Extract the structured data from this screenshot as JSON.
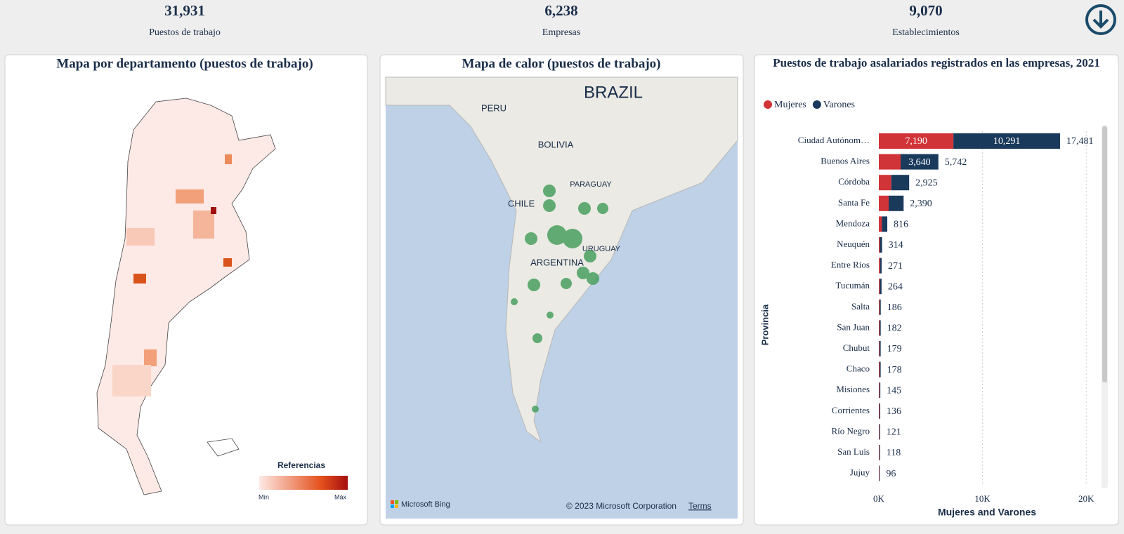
{
  "kpis": [
    {
      "value": "31,931",
      "label": "Puestos de trabajo"
    },
    {
      "value": "6,238",
      "label": "Empresas"
    },
    {
      "value": "9,070",
      "label": "Establecimientos"
    }
  ],
  "map_panel": {
    "title": "Mapa por departamento (puestos de trabajo)",
    "legend_title": "Referencias",
    "legend_min": "Mín",
    "legend_max": "Máx"
  },
  "heat_panel": {
    "title": "Mapa de calor (puestos de trabajo)",
    "labels": [
      "BRAZIL",
      "PERU",
      "BOLIVIA",
      "CHILE",
      "PARAGUAY",
      "URUGUAY",
      "ARGENTINA"
    ],
    "brand": "Microsoft Bing",
    "copyright": "© 2023 Microsoft Corporation",
    "terms": "Terms"
  },
  "chart_data": {
    "type": "stacked_bar_horizontal",
    "title": "Puestos de trabajo asalariados registrados en las empresas, 2021",
    "x_label": "Mujeres and Varones",
    "y_label": "Provincia",
    "categories": [
      "Ciudad Autónom…",
      "Buenos Aires",
      "Córdoba",
      "Santa Fe",
      "Mendoza",
      "Neuquén",
      "Entre Ríos",
      "Tucumán",
      "Salta",
      "San Juan",
      "Chubut",
      "Chaco",
      "Misiones",
      "Corrientes",
      "Río Negro",
      "San Luis",
      "Jujuy"
    ],
    "series": [
      {
        "name": "Mujeres",
        "color": "#d13438",
        "values": [
          7190,
          2102,
          1200,
          950,
          300,
          100,
          120,
          90,
          80,
          70,
          60,
          70,
          60,
          60,
          50,
          50,
          40
        ],
        "value_labels": [
          "7,190",
          null,
          null,
          null,
          null,
          null,
          null,
          null,
          null,
          null,
          null,
          null,
          null,
          null,
          null,
          null,
          null
        ]
      },
      {
        "name": "Varones",
        "color": "#1a3a5c",
        "values": [
          10291,
          3640,
          1725,
          1440,
          516,
          214,
          151,
          174,
          106,
          112,
          119,
          108,
          85,
          76,
          71,
          68,
          56
        ],
        "value_labels": [
          "10,291",
          "3,640",
          null,
          null,
          null,
          null,
          null,
          null,
          null,
          null,
          null,
          null,
          null,
          null,
          null,
          null,
          null
        ]
      }
    ],
    "totals": [
      17481,
      5742,
      2925,
      2390,
      816,
      314,
      271,
      264,
      186,
      182,
      179,
      178,
      145,
      136,
      121,
      118,
      96
    ],
    "total_labels": [
      "17,481",
      "5,742",
      "2,925",
      "2,390",
      "816",
      "314",
      "271",
      "264",
      "186",
      "182",
      "179",
      "178",
      "145",
      "136",
      "121",
      "118",
      "96"
    ],
    "xlim": [
      0,
      21000
    ],
    "xticks": [
      {
        "value": 0,
        "label": "0K"
      },
      {
        "value": 10000,
        "label": "10K"
      },
      {
        "value": 20000,
        "label": "20K"
      }
    ],
    "grid": true,
    "legend": "top-left"
  }
}
